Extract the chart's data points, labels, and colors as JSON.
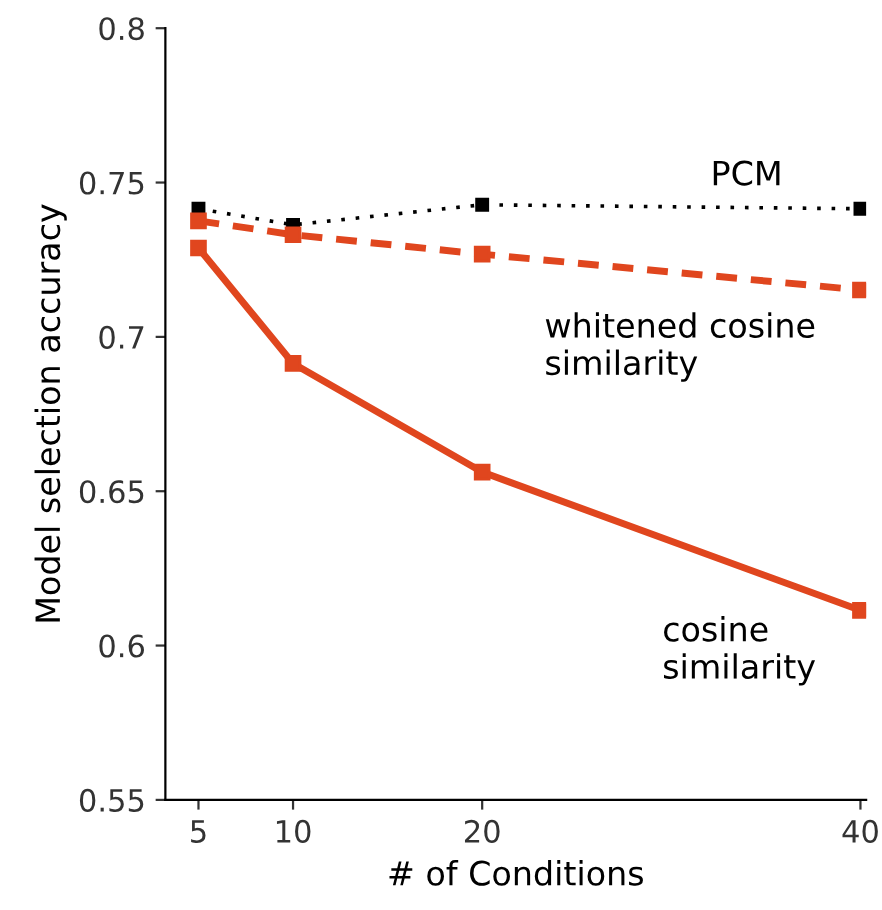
{
  "chart_data": {
    "type": "line",
    "xlabel": "# of Conditions",
    "ylabel": "Model selection accuracy",
    "x": [
      5,
      10,
      20,
      40
    ],
    "xlim": [
      3.25,
      40.3
    ],
    "xticks": [
      5,
      10,
      20,
      40
    ],
    "ylim": [
      0.55,
      0.8
    ],
    "yticks": [
      0.55,
      0.6,
      0.65,
      0.7,
      0.75,
      0.8
    ],
    "grid": false,
    "legend": false,
    "marker": "square",
    "series": [
      {
        "name": "PCM",
        "color": "#000000",
        "line_style": "dotted",
        "values": [
          0.7415,
          0.7363,
          0.7428,
          0.7415
        ]
      },
      {
        "name": "whitened cosine\nsimilarity",
        "color": "#e0461e",
        "line_style": "dashed",
        "values": [
          0.7376,
          0.7331,
          0.7268,
          0.7152
        ]
      },
      {
        "name": "cosine\nsimilarity",
        "color": "#e0461e",
        "line_style": "solid",
        "values": [
          0.7288,
          0.6914,
          0.6562,
          0.6114
        ]
      }
    ]
  }
}
